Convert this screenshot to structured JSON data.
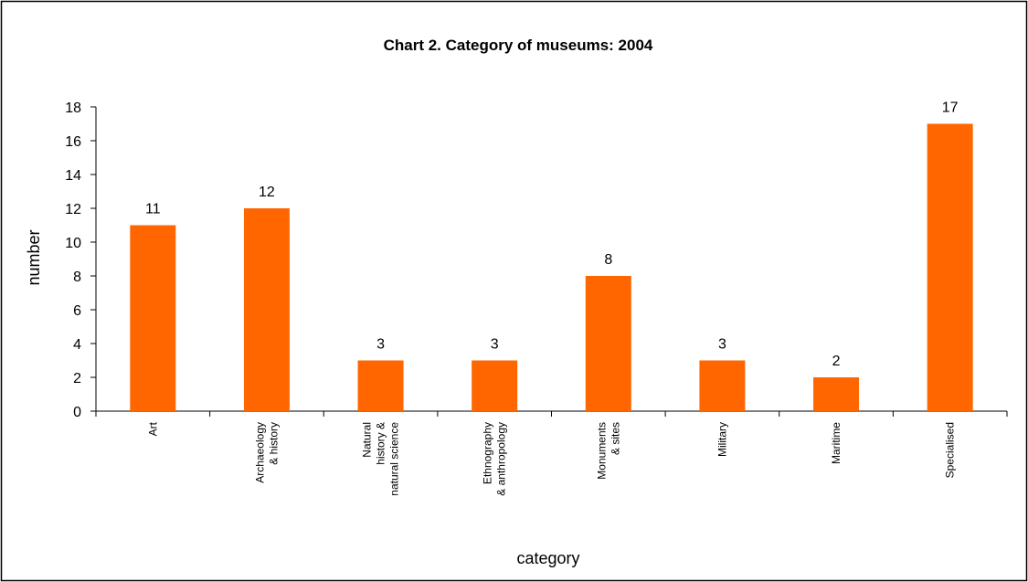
{
  "chart_data": {
    "type": "bar",
    "title": "Chart 2. Category of museums: 2004",
    "xlabel": "category",
    "ylabel": "number",
    "ylim": [
      0,
      18
    ],
    "yticks": [
      0,
      2,
      4,
      6,
      8,
      10,
      12,
      14,
      16,
      18
    ],
    "grid": false,
    "legend": "none",
    "bar_color": "#FF6600",
    "categories": [
      [
        "Art"
      ],
      [
        "Archaeology",
        "& history"
      ],
      [
        "Natural",
        "history &",
        "natural science"
      ],
      [
        "Ethnography",
        "& anthropology"
      ],
      [
        "Monuments",
        "& sites"
      ],
      [
        "Military"
      ],
      [
        "Maritime"
      ],
      [
        "Specialised"
      ]
    ],
    "values": [
      11,
      12,
      3,
      3,
      8,
      3,
      2,
      17
    ]
  }
}
